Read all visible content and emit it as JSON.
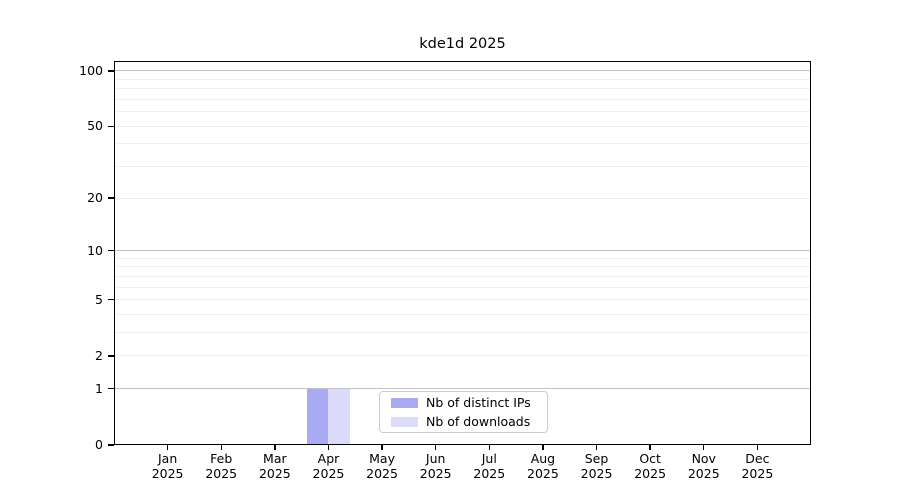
{
  "chart_data": {
    "type": "bar",
    "title": "kde1d 2025",
    "categories": [
      {
        "month": "Jan",
        "year": "2025"
      },
      {
        "month": "Feb",
        "year": "2025"
      },
      {
        "month": "Mar",
        "year": "2025"
      },
      {
        "month": "Apr",
        "year": "2025"
      },
      {
        "month": "May",
        "year": "2025"
      },
      {
        "month": "Jun",
        "year": "2025"
      },
      {
        "month": "Jul",
        "year": "2025"
      },
      {
        "month": "Aug",
        "year": "2025"
      },
      {
        "month": "Sep",
        "year": "2025"
      },
      {
        "month": "Oct",
        "year": "2025"
      },
      {
        "month": "Nov",
        "year": "2025"
      },
      {
        "month": "Dec",
        "year": "2025"
      }
    ],
    "series": [
      {
        "name": "Nb of distinct IPs",
        "color": "#a9a9f4",
        "values": [
          0,
          0,
          0,
          1,
          0,
          0,
          0,
          0,
          0,
          0,
          0,
          0
        ]
      },
      {
        "name": "Nb of downloads",
        "color": "#dcdcfa",
        "values": [
          0,
          0,
          0,
          1,
          0,
          0,
          0,
          0,
          0,
          0,
          0,
          0
        ]
      }
    ],
    "y_scale": "log1p",
    "ylim": [
      0,
      113
    ],
    "y_ticks": [
      0,
      1,
      2,
      5,
      10,
      20,
      50,
      100
    ],
    "y_major_gridlines": [
      1,
      10,
      100
    ],
    "y_minor_gridlines": [
      2,
      3,
      4,
      5,
      6,
      7,
      8,
      9,
      20,
      30,
      40,
      50,
      60,
      70,
      80,
      90
    ],
    "grid": true,
    "legend_position": "lower center-right inside plot"
  },
  "colors": {
    "background": "#ffffff",
    "axis": "#000000",
    "major_grid": "#c2c2c2",
    "minor_grid": "#efefef",
    "legend_border": "#cccccc",
    "bar_distinct_ips": "#a9a9f4",
    "bar_downloads": "#dcdcfa"
  }
}
